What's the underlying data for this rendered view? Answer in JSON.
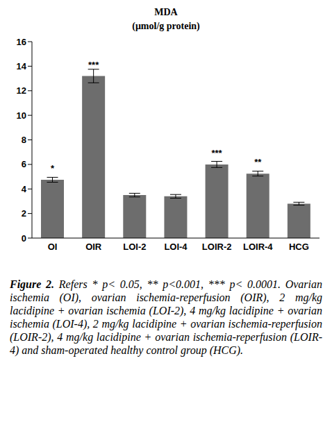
{
  "chart_data": {
    "type": "bar",
    "title": "MDA",
    "subtitle": "(μmol/g protein)",
    "categories": [
      "OI",
      "OIR",
      "LOI-2",
      "LOI-4",
      "LOIR-2",
      "LOIR-4",
      "HCG"
    ],
    "values": [
      4.75,
      13.2,
      3.5,
      3.4,
      6.0,
      5.25,
      2.8
    ],
    "errors": [
      0.2,
      0.55,
      0.15,
      0.15,
      0.25,
      0.2,
      0.12
    ],
    "annotations": [
      "*",
      "***",
      null,
      null,
      "***",
      "**",
      null
    ],
    "color": "#6d6d6d",
    "ylim": [
      0,
      16
    ],
    "yticks": [
      0,
      2,
      4,
      6,
      8,
      10,
      12,
      14,
      16
    ],
    "grid": false,
    "caption_label": "Figure 2.",
    "caption": "Refers * p< 0.05, ** p<0.001, *** p< 0.0001. Ovarian ischemia (OI), ovarian ischemia-reperfusion (OIR), 2 mg/kg lacidipine + ovarian ischemia (LOI-2), 4 mg/kg lacidipine + ovarian ischemia (LOI-4), 2 mg/kg lacidipine + ovarian ischemia-reperfusion (LOIR-2), 4 mg/kg lacidipine + ovarian ischemia-reperfusion (LOIR-4) and sham-operated healthy control group (HCG)."
  }
}
